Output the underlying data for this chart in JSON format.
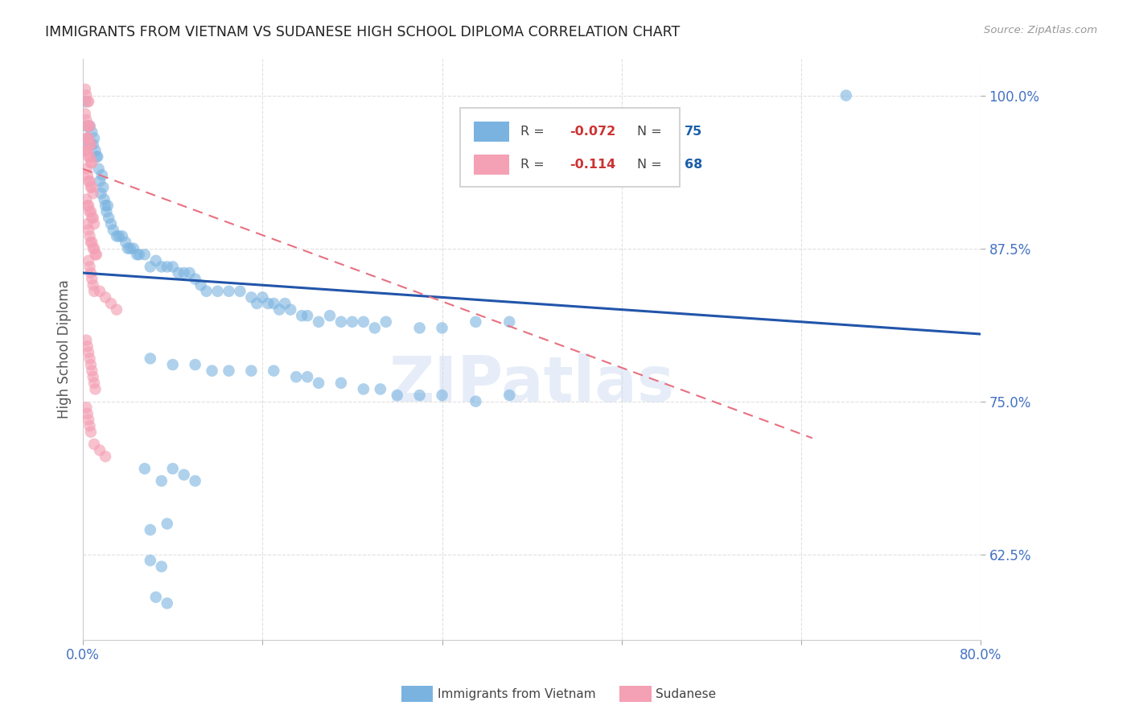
{
  "title": "IMMIGRANTS FROM VIETNAM VS SUDANESE HIGH SCHOOL DIPLOMA CORRELATION CHART",
  "source": "Source: ZipAtlas.com",
  "ylabel": "High School Diploma",
  "watermark": "ZIPatlas",
  "x_min": 0.0,
  "x_max": 0.8,
  "y_min": 0.555,
  "y_max": 1.03,
  "x_ticks": [
    0.0,
    0.16,
    0.32,
    0.48,
    0.64,
    0.8
  ],
  "x_tick_labels": [
    "0.0%",
    "",
    "",
    "",
    "",
    "80.0%"
  ],
  "y_ticks": [
    0.625,
    0.75,
    0.875,
    1.0
  ],
  "y_tick_labels": [
    "62.5%",
    "75.0%",
    "87.5%",
    "100.0%"
  ],
  "blue_color": "#7ab3e0",
  "pink_color": "#f4a0b5",
  "trendline_blue_color": "#2255aa",
  "trendline_pink_color": "#e87080",
  "background_color": "#ffffff",
  "grid_color": "#dddddd",
  "watermark_color": "#c8d8f0",
  "axis_label_color": "#4472c4",
  "blue_scatter": [
    [
      0.002,
      0.995
    ],
    [
      0.003,
      0.975
    ],
    [
      0.004,
      0.965
    ],
    [
      0.005,
      0.96
    ],
    [
      0.006,
      0.975
    ],
    [
      0.007,
      0.96
    ],
    [
      0.008,
      0.97
    ],
    [
      0.009,
      0.96
    ],
    [
      0.01,
      0.965
    ],
    [
      0.011,
      0.955
    ],
    [
      0.012,
      0.95
    ],
    [
      0.013,
      0.95
    ],
    [
      0.014,
      0.94
    ],
    [
      0.015,
      0.93
    ],
    [
      0.016,
      0.92
    ],
    [
      0.017,
      0.935
    ],
    [
      0.018,
      0.925
    ],
    [
      0.019,
      0.915
    ],
    [
      0.02,
      0.91
    ],
    [
      0.021,
      0.905
    ],
    [
      0.022,
      0.91
    ],
    [
      0.023,
      0.9
    ],
    [
      0.025,
      0.895
    ],
    [
      0.027,
      0.89
    ],
    [
      0.03,
      0.885
    ],
    [
      0.032,
      0.885
    ],
    [
      0.035,
      0.885
    ],
    [
      0.038,
      0.88
    ],
    [
      0.04,
      0.875
    ],
    [
      0.042,
      0.875
    ],
    [
      0.045,
      0.875
    ],
    [
      0.048,
      0.87
    ],
    [
      0.05,
      0.87
    ],
    [
      0.055,
      0.87
    ],
    [
      0.06,
      0.86
    ],
    [
      0.065,
      0.865
    ],
    [
      0.07,
      0.86
    ],
    [
      0.075,
      0.86
    ],
    [
      0.08,
      0.86
    ],
    [
      0.085,
      0.855
    ],
    [
      0.09,
      0.855
    ],
    [
      0.095,
      0.855
    ],
    [
      0.1,
      0.85
    ],
    [
      0.105,
      0.845
    ],
    [
      0.11,
      0.84
    ],
    [
      0.12,
      0.84
    ],
    [
      0.13,
      0.84
    ],
    [
      0.14,
      0.84
    ],
    [
      0.15,
      0.835
    ],
    [
      0.155,
      0.83
    ],
    [
      0.16,
      0.835
    ],
    [
      0.165,
      0.83
    ],
    [
      0.17,
      0.83
    ],
    [
      0.175,
      0.825
    ],
    [
      0.18,
      0.83
    ],
    [
      0.185,
      0.825
    ],
    [
      0.195,
      0.82
    ],
    [
      0.2,
      0.82
    ],
    [
      0.21,
      0.815
    ],
    [
      0.22,
      0.82
    ],
    [
      0.23,
      0.815
    ],
    [
      0.24,
      0.815
    ],
    [
      0.25,
      0.815
    ],
    [
      0.26,
      0.81
    ],
    [
      0.27,
      0.815
    ],
    [
      0.3,
      0.81
    ],
    [
      0.32,
      0.81
    ],
    [
      0.35,
      0.815
    ],
    [
      0.38,
      0.815
    ],
    [
      0.68,
      1.0
    ],
    [
      0.06,
      0.785
    ],
    [
      0.08,
      0.78
    ],
    [
      0.1,
      0.78
    ],
    [
      0.115,
      0.775
    ],
    [
      0.13,
      0.775
    ],
    [
      0.15,
      0.775
    ],
    [
      0.17,
      0.775
    ],
    [
      0.19,
      0.77
    ],
    [
      0.2,
      0.77
    ],
    [
      0.21,
      0.765
    ],
    [
      0.23,
      0.765
    ],
    [
      0.25,
      0.76
    ],
    [
      0.265,
      0.76
    ],
    [
      0.28,
      0.755
    ],
    [
      0.3,
      0.755
    ],
    [
      0.32,
      0.755
    ],
    [
      0.35,
      0.75
    ],
    [
      0.38,
      0.755
    ],
    [
      0.055,
      0.695
    ],
    [
      0.07,
      0.685
    ],
    [
      0.08,
      0.695
    ],
    [
      0.09,
      0.69
    ],
    [
      0.1,
      0.685
    ],
    [
      0.06,
      0.645
    ],
    [
      0.075,
      0.65
    ],
    [
      0.06,
      0.62
    ],
    [
      0.07,
      0.615
    ],
    [
      0.065,
      0.59
    ],
    [
      0.075,
      0.585
    ]
  ],
  "pink_scatter": [
    [
      0.002,
      1.005
    ],
    [
      0.003,
      1.0
    ],
    [
      0.004,
      0.995
    ],
    [
      0.005,
      0.995
    ],
    [
      0.002,
      0.985
    ],
    [
      0.003,
      0.98
    ],
    [
      0.004,
      0.975
    ],
    [
      0.005,
      0.975
    ],
    [
      0.006,
      0.975
    ],
    [
      0.003,
      0.965
    ],
    [
      0.004,
      0.965
    ],
    [
      0.005,
      0.965
    ],
    [
      0.006,
      0.96
    ],
    [
      0.007,
      0.96
    ],
    [
      0.002,
      0.955
    ],
    [
      0.003,
      0.955
    ],
    [
      0.004,
      0.955
    ],
    [
      0.005,
      0.95
    ],
    [
      0.006,
      0.95
    ],
    [
      0.007,
      0.945
    ],
    [
      0.008,
      0.945
    ],
    [
      0.003,
      0.94
    ],
    [
      0.004,
      0.935
    ],
    [
      0.005,
      0.93
    ],
    [
      0.006,
      0.93
    ],
    [
      0.007,
      0.925
    ],
    [
      0.008,
      0.925
    ],
    [
      0.009,
      0.92
    ],
    [
      0.003,
      0.915
    ],
    [
      0.004,
      0.91
    ],
    [
      0.005,
      0.91
    ],
    [
      0.006,
      0.905
    ],
    [
      0.007,
      0.905
    ],
    [
      0.008,
      0.9
    ],
    [
      0.009,
      0.9
    ],
    [
      0.01,
      0.895
    ],
    [
      0.004,
      0.895
    ],
    [
      0.005,
      0.89
    ],
    [
      0.006,
      0.885
    ],
    [
      0.007,
      0.88
    ],
    [
      0.008,
      0.88
    ],
    [
      0.009,
      0.875
    ],
    [
      0.01,
      0.875
    ],
    [
      0.011,
      0.87
    ],
    [
      0.012,
      0.87
    ],
    [
      0.005,
      0.865
    ],
    [
      0.006,
      0.86
    ],
    [
      0.007,
      0.855
    ],
    [
      0.008,
      0.85
    ],
    [
      0.009,
      0.845
    ],
    [
      0.01,
      0.84
    ],
    [
      0.015,
      0.84
    ],
    [
      0.02,
      0.835
    ],
    [
      0.025,
      0.83
    ],
    [
      0.03,
      0.825
    ],
    [
      0.003,
      0.8
    ],
    [
      0.004,
      0.795
    ],
    [
      0.005,
      0.79
    ],
    [
      0.006,
      0.785
    ],
    [
      0.007,
      0.78
    ],
    [
      0.008,
      0.775
    ],
    [
      0.009,
      0.77
    ],
    [
      0.01,
      0.765
    ],
    [
      0.011,
      0.76
    ],
    [
      0.003,
      0.745
    ],
    [
      0.004,
      0.74
    ],
    [
      0.005,
      0.735
    ],
    [
      0.006,
      0.73
    ],
    [
      0.007,
      0.725
    ],
    [
      0.01,
      0.715
    ],
    [
      0.015,
      0.71
    ],
    [
      0.02,
      0.705
    ]
  ],
  "blue_trendline_x": [
    0.0,
    0.8
  ],
  "blue_trendline_y": [
    0.855,
    0.805
  ],
  "pink_trendline_x": [
    0.0,
    0.65
  ],
  "pink_trendline_y": [
    0.94,
    0.72
  ]
}
